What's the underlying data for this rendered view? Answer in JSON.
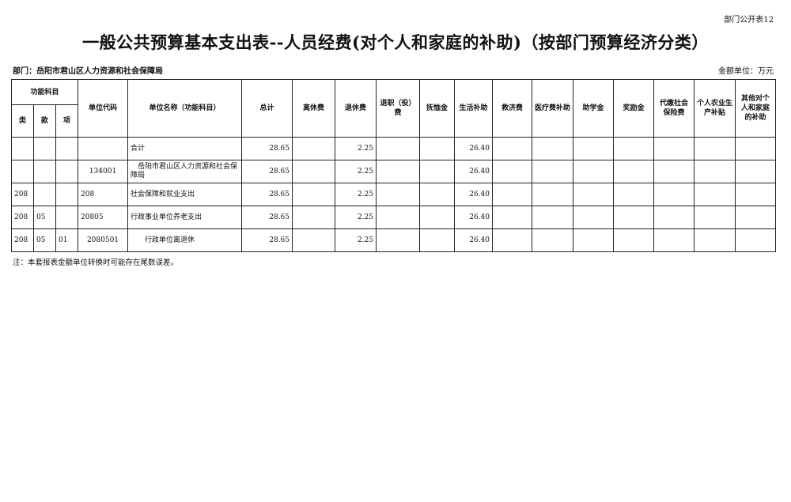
{
  "corner_label": "部门公开表12",
  "title": "一般公共预算基本支出表--人员经费(对个人和家庭的补助)（按部门预算经济分类）",
  "department": "部门：岳阳市君山区人力资源和社会保障局",
  "unit": "金额单位：万元",
  "headers": {
    "group": "功能科目",
    "lei": "类",
    "kuan": "款",
    "xiang": "项",
    "code": "单位代码",
    "name": "单位名称（功能科目）",
    "cols": [
      "总计",
      "离休费",
      "退休费",
      "退职（役）费",
      "抚恤金",
      "生活补助",
      "救济费",
      "医疗费补助",
      "助学金",
      "奖励金",
      "代缴社会保险费",
      "个人农业生产补贴",
      "其他对个人和家庭的补助"
    ]
  },
  "rows": [
    {
      "lei": "",
      "kuan": "",
      "xiang": "",
      "code": "",
      "name": "合计",
      "total": "28.65",
      "retire": "2.25",
      "living": "26.40"
    },
    {
      "lei": "",
      "kuan": "",
      "xiang": "",
      "code": "134001",
      "name": "　岳阳市君山区人力资源和社会保障局",
      "total": "28.65",
      "retire": "2.25",
      "living": "26.40"
    },
    {
      "lei": "208",
      "kuan": "",
      "xiang": "",
      "code": "208",
      "name": "社会保障和就业支出",
      "total": "28.65",
      "retire": "2.25",
      "living": "26.40"
    },
    {
      "lei": "208",
      "kuan": "05",
      "xiang": "",
      "code": "20805",
      "name": "行政事业单位养老支出",
      "total": "28.65",
      "retire": "2.25",
      "living": "26.40"
    },
    {
      "lei": "208",
      "kuan": "05",
      "xiang": "01",
      "code": "2080501",
      "name": "　　行政单位离退休",
      "total": "28.65",
      "retire": "2.25",
      "living": "26.40"
    }
  ],
  "note": "注：本套报表金额单位转换时可能存在尾数误差。"
}
